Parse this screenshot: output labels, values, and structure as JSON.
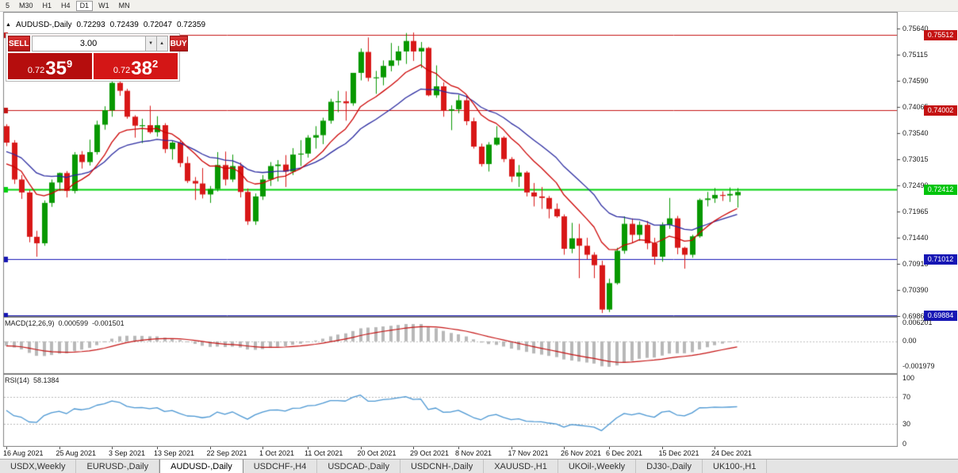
{
  "toolbar": {
    "timeframes": [
      {
        "label": "5",
        "active": false
      },
      {
        "label": "M30",
        "active": false
      },
      {
        "label": "H1",
        "active": false
      },
      {
        "label": "H4",
        "active": false
      },
      {
        "label": "D1",
        "active": true
      },
      {
        "label": "W1",
        "active": false
      },
      {
        "label": "MN",
        "active": false
      }
    ]
  },
  "chart_header": {
    "icon": "▲",
    "title": "AUDUSD-,Daily",
    "open": "0.72293",
    "high": "0.72439",
    "low": "0.72047",
    "close": "0.72359"
  },
  "trade_panel": {
    "sell_label": "SELL",
    "buy_label": "BUY",
    "volume": "3.00",
    "spin_up_icon": "▲",
    "spin_down_icon": "▼",
    "sell_quote": {
      "prefix": "0.72",
      "big": "35",
      "sup": "9"
    },
    "buy_quote": {
      "prefix": "0.72",
      "big": "38",
      "sup": "2"
    }
  },
  "price_axis": {
    "ticks": [
      "0.75640",
      "0.75115",
      "0.74590",
      "0.74065",
      "0.73540",
      "0.73015",
      "0.72490",
      "0.71965",
      "0.71440",
      "0.70915",
      "0.70390",
      "0.69865"
    ],
    "badges": [
      {
        "text": "0.75512",
        "value": 0.75512,
        "bg": "#c41212",
        "fg": "#ffffff"
      },
      {
        "text": "0.74002",
        "value": 0.74002,
        "bg": "#c41212",
        "fg": "#ffffff"
      },
      {
        "text": "0.72412",
        "value": 0.72412,
        "bg": "#00c40c",
        "fg": "#ffffff"
      },
      {
        "text": "0.71012",
        "value": 0.71012,
        "bg": "#1616b4",
        "fg": "#ffffff"
      },
      {
        "text": "0.69884",
        "value": 0.69884,
        "bg": "#1616b4",
        "fg": "#ffffff"
      }
    ]
  },
  "hlines": [
    {
      "value": 0.75512,
      "color": "#c41212",
      "width": 1
    },
    {
      "value": 0.74002,
      "color": "#c41212",
      "width": 1
    },
    {
      "value": 0.72412,
      "color": "#00d20c",
      "width": 2
    },
    {
      "value": 0.71012,
      "color": "#1616b4",
      "width": 1
    },
    {
      "value": 0.69884,
      "color": "#1616b4",
      "width": 1
    }
  ],
  "macd": {
    "label": "MACD(12,26,9)",
    "value_main": "0.000599",
    "value_signal": "-0.001501",
    "axis_top": "0.006201",
    "axis_zero": "0.00",
    "axis_bottom": "-0.001979"
  },
  "rsi": {
    "label": "RSI(14)",
    "value": "58.1384",
    "axis": [
      "100",
      "70",
      "30",
      "0"
    ]
  },
  "date_axis": [
    {
      "label": "16 Aug 2021",
      "index": 0
    },
    {
      "label": "25 Aug 2021",
      "index": 7
    },
    {
      "label": "3 Sep 2021",
      "index": 14
    },
    {
      "label": "13 Sep 2021",
      "index": 20
    },
    {
      "label": "22 Sep 2021",
      "index": 27
    },
    {
      "label": "1 Oct 2021",
      "index": 34
    },
    {
      "label": "11 Oct 2021",
      "index": 40
    },
    {
      "label": "20 Oct 2021",
      "index": 47
    },
    {
      "label": "29 Oct 2021",
      "index": 54
    },
    {
      "label": "8 Nov 2021",
      "index": 60
    },
    {
      "label": "17 Nov 2021",
      "index": 67
    },
    {
      "label": "26 Nov 2021",
      "index": 74
    },
    {
      "label": "6 Dec 2021",
      "index": 80
    },
    {
      "label": "15 Dec 2021",
      "index": 87
    },
    {
      "label": "24 Dec 2021",
      "index": 94
    }
  ],
  "tabs": [
    {
      "label": "USDX,Weekly",
      "active": false
    },
    {
      "label": "EURUSD-,Daily",
      "active": false
    },
    {
      "label": "AUDUSD-,Daily",
      "active": true
    },
    {
      "label": "USDCHF-,H4",
      "active": false
    },
    {
      "label": "USDCAD-,Daily",
      "active": false
    },
    {
      "label": "USDCNH-,Daily",
      "active": false
    },
    {
      "label": "XAUUSD-,H1",
      "active": false
    },
    {
      "label": "UKOil-,Weekly",
      "active": false
    },
    {
      "label": "DJ30-,Daily",
      "active": false
    },
    {
      "label": "UK100-,H1",
      "active": false
    }
  ],
  "chart_data": {
    "type": "candlestick",
    "symbol": "AUDUSD-",
    "timeframe": "Daily",
    "indicators": {
      "ma_fast": {
        "type": "EMA",
        "period": 10,
        "color": "#cc0000"
      },
      "ma_slow": {
        "type": "EMA",
        "period": 20,
        "color": "#2a2aa0"
      },
      "macd_params": [
        12,
        26,
        9
      ],
      "macd_histogram_color": "#b8b8b8",
      "macd_signal_color": "#c41212",
      "rsi_period": 14,
      "rsi_color": "#4a96d2",
      "up_color": "#089800",
      "down_color": "#d81717"
    },
    "ohlc": [
      [
        0.7368,
        0.7372,
        0.7328,
        0.7335
      ],
      [
        0.7335,
        0.734,
        0.7252,
        0.7261
      ],
      [
        0.7261,
        0.727,
        0.7222,
        0.7235
      ],
      [
        0.7235,
        0.724,
        0.7135,
        0.7146
      ],
      [
        0.7146,
        0.7158,
        0.7106,
        0.7133
      ],
      [
        0.7133,
        0.7219,
        0.7128,
        0.7214
      ],
      [
        0.7214,
        0.7261,
        0.7206,
        0.7255
      ],
      [
        0.7255,
        0.7275,
        0.7238,
        0.7274
      ],
      [
        0.7274,
        0.7278,
        0.7225,
        0.7238
      ],
      [
        0.7238,
        0.7316,
        0.7233,
        0.7311
      ],
      [
        0.7311,
        0.7318,
        0.7283,
        0.7296
      ],
      [
        0.7296,
        0.7341,
        0.7289,
        0.7316
      ],
      [
        0.7316,
        0.7379,
        0.7311,
        0.7371
      ],
      [
        0.7371,
        0.7408,
        0.7361,
        0.74
      ],
      [
        0.74,
        0.7477,
        0.7387,
        0.7455
      ],
      [
        0.7455,
        0.7462,
        0.7429,
        0.7439
      ],
      [
        0.7439,
        0.7443,
        0.7383,
        0.7387
      ],
      [
        0.7387,
        0.739,
        0.7345,
        0.7369
      ],
      [
        0.7369,
        0.7383,
        0.7334,
        0.737
      ],
      [
        0.737,
        0.7409,
        0.7353,
        0.7356
      ],
      [
        0.7356,
        0.7388,
        0.7347,
        0.737
      ],
      [
        0.737,
        0.7374,
        0.7314,
        0.7322
      ],
      [
        0.7322,
        0.7338,
        0.7301,
        0.7335
      ],
      [
        0.7335,
        0.7339,
        0.7286,
        0.7294
      ],
      [
        0.7294,
        0.7307,
        0.7254,
        0.7258
      ],
      [
        0.7258,
        0.7266,
        0.722,
        0.7253
      ],
      [
        0.7253,
        0.7284,
        0.7223,
        0.7231
      ],
      [
        0.7231,
        0.7248,
        0.7214,
        0.7242
      ],
      [
        0.7242,
        0.7316,
        0.7237,
        0.729
      ],
      [
        0.729,
        0.7317,
        0.7249,
        0.7261
      ],
      [
        0.7261,
        0.7311,
        0.7256,
        0.7288
      ],
      [
        0.7288,
        0.7295,
        0.7225,
        0.7236
      ],
      [
        0.7236,
        0.7243,
        0.717,
        0.7177
      ],
      [
        0.7177,
        0.7233,
        0.717,
        0.7227
      ],
      [
        0.7227,
        0.727,
        0.722,
        0.7261
      ],
      [
        0.7261,
        0.7296,
        0.7248,
        0.7288
      ],
      [
        0.7288,
        0.73,
        0.7257,
        0.7291
      ],
      [
        0.7291,
        0.731,
        0.7246,
        0.7277
      ],
      [
        0.7277,
        0.7324,
        0.727,
        0.7311
      ],
      [
        0.7311,
        0.734,
        0.7288,
        0.7313
      ],
      [
        0.7313,
        0.735,
        0.7305,
        0.7345
      ],
      [
        0.7345,
        0.7368,
        0.7323,
        0.735
      ],
      [
        0.735,
        0.7385,
        0.7332,
        0.7379
      ],
      [
        0.7379,
        0.7423,
        0.7373,
        0.7417
      ],
      [
        0.7417,
        0.7439,
        0.7396,
        0.7418
      ],
      [
        0.7418,
        0.7438,
        0.7379,
        0.7414
      ],
      [
        0.7414,
        0.7475,
        0.7409,
        0.7475
      ],
      [
        0.7475,
        0.7524,
        0.746,
        0.7517
      ],
      [
        0.7517,
        0.7546,
        0.7458,
        0.7465
      ],
      [
        0.7465,
        0.7479,
        0.7433,
        0.7466
      ],
      [
        0.7466,
        0.75,
        0.745,
        0.7489
      ],
      [
        0.7489,
        0.7535,
        0.7478,
        0.75
      ],
      [
        0.75,
        0.7529,
        0.749,
        0.7518
      ],
      [
        0.7518,
        0.7555,
        0.7493,
        0.7539
      ],
      [
        0.7539,
        0.7556,
        0.7499,
        0.7518
      ],
      [
        0.7518,
        0.7537,
        0.7485,
        0.7525
      ],
      [
        0.7525,
        0.7527,
        0.7428,
        0.743
      ],
      [
        0.743,
        0.749,
        0.7425,
        0.7448
      ],
      [
        0.7448,
        0.7456,
        0.7387,
        0.7399
      ],
      [
        0.7399,
        0.741,
        0.736,
        0.7402
      ],
      [
        0.7402,
        0.7431,
        0.7394,
        0.742
      ],
      [
        0.742,
        0.7429,
        0.737,
        0.7378
      ],
      [
        0.7378,
        0.7385,
        0.7323,
        0.7327
      ],
      [
        0.7327,
        0.7333,
        0.7287,
        0.7292
      ],
      [
        0.7292,
        0.7336,
        0.7277,
        0.7331
      ],
      [
        0.7331,
        0.7368,
        0.7329,
        0.7345
      ],
      [
        0.7345,
        0.7348,
        0.7296,
        0.7302
      ],
      [
        0.7302,
        0.7306,
        0.7256,
        0.7267
      ],
      [
        0.7267,
        0.729,
        0.7246,
        0.7275
      ],
      [
        0.7275,
        0.7278,
        0.7227,
        0.7235
      ],
      [
        0.7235,
        0.7254,
        0.7207,
        0.7227
      ],
      [
        0.7227,
        0.7246,
        0.7202,
        0.7224
      ],
      [
        0.7224,
        0.7228,
        0.7183,
        0.7202
      ],
      [
        0.7202,
        0.7213,
        0.7184,
        0.7187
      ],
      [
        0.7187,
        0.7191,
        0.711,
        0.7122
      ],
      [
        0.7122,
        0.7174,
        0.7113,
        0.7143
      ],
      [
        0.7143,
        0.7172,
        0.7063,
        0.7128
      ],
      [
        0.7128,
        0.7144,
        0.7101,
        0.711
      ],
      [
        0.711,
        0.7115,
        0.7063,
        0.7089
      ],
      [
        0.7089,
        0.7098,
        0.6993,
        0.7
      ],
      [
        0.7,
        0.7062,
        0.6995,
        0.7053
      ],
      [
        0.7053,
        0.7124,
        0.705,
        0.7118
      ],
      [
        0.7118,
        0.7187,
        0.7112,
        0.7172
      ],
      [
        0.7172,
        0.7183,
        0.7134,
        0.715
      ],
      [
        0.715,
        0.7177,
        0.7138,
        0.717
      ],
      [
        0.717,
        0.7178,
        0.7121,
        0.7133
      ],
      [
        0.7133,
        0.7144,
        0.709,
        0.7106
      ],
      [
        0.7106,
        0.7175,
        0.7096,
        0.717
      ],
      [
        0.717,
        0.7224,
        0.7162,
        0.7183
      ],
      [
        0.7183,
        0.7188,
        0.7111,
        0.7124
      ],
      [
        0.7124,
        0.7126,
        0.7082,
        0.711
      ],
      [
        0.711,
        0.715,
        0.7104,
        0.7147
      ],
      [
        0.7147,
        0.7223,
        0.7144,
        0.722
      ],
      [
        0.722,
        0.7236,
        0.7207,
        0.7223
      ],
      [
        0.7223,
        0.7244,
        0.7214,
        0.723
      ],
      [
        0.723,
        0.7237,
        0.7218,
        0.7229
      ],
      [
        0.7229,
        0.7245,
        0.7216,
        0.7232
      ],
      [
        0.72293,
        0.72439,
        0.72047,
        0.72359
      ]
    ]
  }
}
